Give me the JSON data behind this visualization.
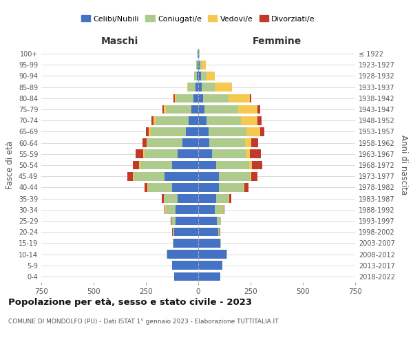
{
  "age_groups": [
    "0-4",
    "5-9",
    "10-14",
    "15-19",
    "20-24",
    "25-29",
    "30-34",
    "35-39",
    "40-44",
    "45-49",
    "50-54",
    "55-59",
    "60-64",
    "65-69",
    "70-74",
    "75-79",
    "80-84",
    "85-89",
    "90-94",
    "95-99",
    "100+"
  ],
  "birth_years": [
    "2018-2022",
    "2013-2017",
    "2008-2012",
    "2003-2007",
    "1998-2002",
    "1993-1997",
    "1988-1992",
    "1983-1987",
    "1978-1982",
    "1973-1977",
    "1968-1972",
    "1963-1967",
    "1958-1962",
    "1953-1957",
    "1948-1952",
    "1943-1947",
    "1938-1942",
    "1933-1937",
    "1928-1932",
    "1923-1927",
    "≤ 1922"
  ],
  "maschi": {
    "celibe": [
      115,
      125,
      148,
      118,
      115,
      110,
      108,
      100,
      125,
      160,
      125,
      100,
      75,
      58,
      47,
      32,
      22,
      12,
      7,
      4,
      2
    ],
    "coniugato": [
      0,
      0,
      2,
      3,
      8,
      18,
      48,
      65,
      115,
      148,
      152,
      158,
      168,
      168,
      158,
      122,
      82,
      38,
      12,
      5,
      2
    ],
    "vedovo": [
      0,
      0,
      0,
      0,
      0,
      0,
      1,
      1,
      2,
      5,
      5,
      5,
      5,
      10,
      10,
      10,
      8,
      3,
      2,
      1,
      0
    ],
    "divorziato": [
      0,
      0,
      0,
      0,
      1,
      2,
      5,
      8,
      15,
      25,
      30,
      35,
      20,
      15,
      10,
      8,
      5,
      0,
      0,
      0,
      0
    ]
  },
  "femmine": {
    "nubile": [
      105,
      115,
      135,
      105,
      95,
      90,
      78,
      85,
      98,
      98,
      85,
      65,
      52,
      48,
      38,
      28,
      22,
      16,
      12,
      6,
      3
    ],
    "coniugata": [
      0,
      0,
      2,
      3,
      8,
      18,
      42,
      60,
      118,
      148,
      158,
      162,
      172,
      182,
      165,
      162,
      122,
      62,
      28,
      12,
      2
    ],
    "vedova": [
      0,
      0,
      0,
      0,
      0,
      0,
      1,
      2,
      5,
      8,
      12,
      20,
      30,
      65,
      80,
      92,
      102,
      82,
      38,
      18,
      3
    ],
    "divorziata": [
      0,
      0,
      0,
      0,
      1,
      2,
      5,
      10,
      20,
      30,
      52,
      52,
      32,
      22,
      20,
      15,
      8,
      2,
      1,
      0,
      0
    ]
  },
  "colors": {
    "celibe": "#4472C4",
    "coniugato": "#AECB8D",
    "vedovo": "#F5C850",
    "divorziato": "#C0392B"
  },
  "xlim": 750,
  "title": "Popolazione per età, sesso e stato civile - 2023",
  "subtitle": "COMUNE DI MONDOLFO (PU) - Dati ISTAT 1° gennaio 2023 - Elaborazione TUTTITALIA.IT",
  "ylabel_left": "Fasce di età",
  "ylabel_right": "Anni di nascita",
  "xlabel_maschi": "Maschi",
  "xlabel_femmine": "Femmine",
  "legend_labels": [
    "Celibi/Nubili",
    "Coniugati/e",
    "Vedovi/e",
    "Divorziati/e"
  ],
  "background_color": "#ffffff",
  "grid_color": "#cccccc"
}
